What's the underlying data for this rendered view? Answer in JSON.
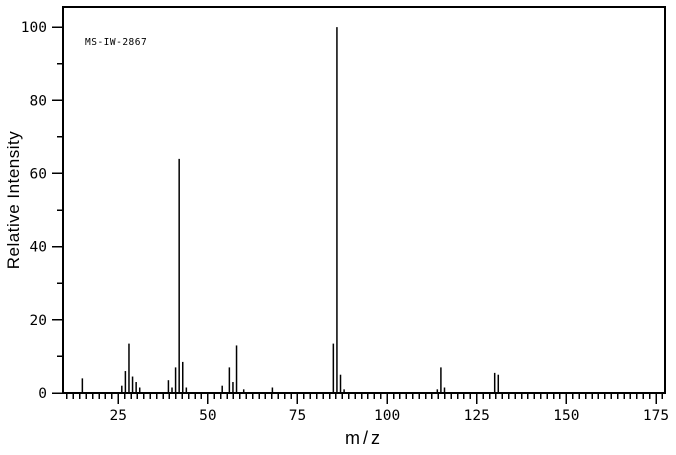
{
  "annotation": "MS-IW-2867",
  "axes": {
    "xlabel": "m/z",
    "ylabel": "Relative Intensity"
  },
  "colors": {
    "foreground": "#000000",
    "background": "#ffffff"
  },
  "chart_data": {
    "type": "bar",
    "subtype": "mass-spectrum-stick-plot",
    "title": "MS-IW-2867",
    "xlabel": "m/z",
    "ylabel": "Relative Intensity",
    "xlim": [
      9.6,
      177.5
    ],
    "ylim": [
      0,
      105.5
    ],
    "grid": false,
    "x_major_ticks": [
      25,
      50,
      75,
      100,
      125,
      150,
      175
    ],
    "x_minor_divisions_per_major": 14,
    "y_major_ticks": [
      0,
      20,
      40,
      60,
      80,
      100
    ],
    "y_minor_ticks": [
      10,
      30,
      50,
      70,
      90
    ],
    "peaks": [
      {
        "mz": 15,
        "intensity": 4
      },
      {
        "mz": 26,
        "intensity": 2
      },
      {
        "mz": 27,
        "intensity": 6
      },
      {
        "mz": 28,
        "intensity": 13.5
      },
      {
        "mz": 29,
        "intensity": 4.5
      },
      {
        "mz": 30,
        "intensity": 3
      },
      {
        "mz": 31,
        "intensity": 1.5
      },
      {
        "mz": 39,
        "intensity": 3.5
      },
      {
        "mz": 40,
        "intensity": 1.5
      },
      {
        "mz": 41,
        "intensity": 7
      },
      {
        "mz": 42,
        "intensity": 64
      },
      {
        "mz": 43,
        "intensity": 8.5
      },
      {
        "mz": 44,
        "intensity": 1.5
      },
      {
        "mz": 54,
        "intensity": 2
      },
      {
        "mz": 56,
        "intensity": 7
      },
      {
        "mz": 57,
        "intensity": 3
      },
      {
        "mz": 58,
        "intensity": 13
      },
      {
        "mz": 60,
        "intensity": 1
      },
      {
        "mz": 68,
        "intensity": 1.5
      },
      {
        "mz": 85,
        "intensity": 13.5
      },
      {
        "mz": 86,
        "intensity": 100
      },
      {
        "mz": 87,
        "intensity": 5
      },
      {
        "mz": 88,
        "intensity": 1
      },
      {
        "mz": 114,
        "intensity": 1
      },
      {
        "mz": 115,
        "intensity": 7
      },
      {
        "mz": 116,
        "intensity": 1.5
      },
      {
        "mz": 130,
        "intensity": 5.5
      },
      {
        "mz": 131,
        "intensity": 5
      }
    ]
  }
}
